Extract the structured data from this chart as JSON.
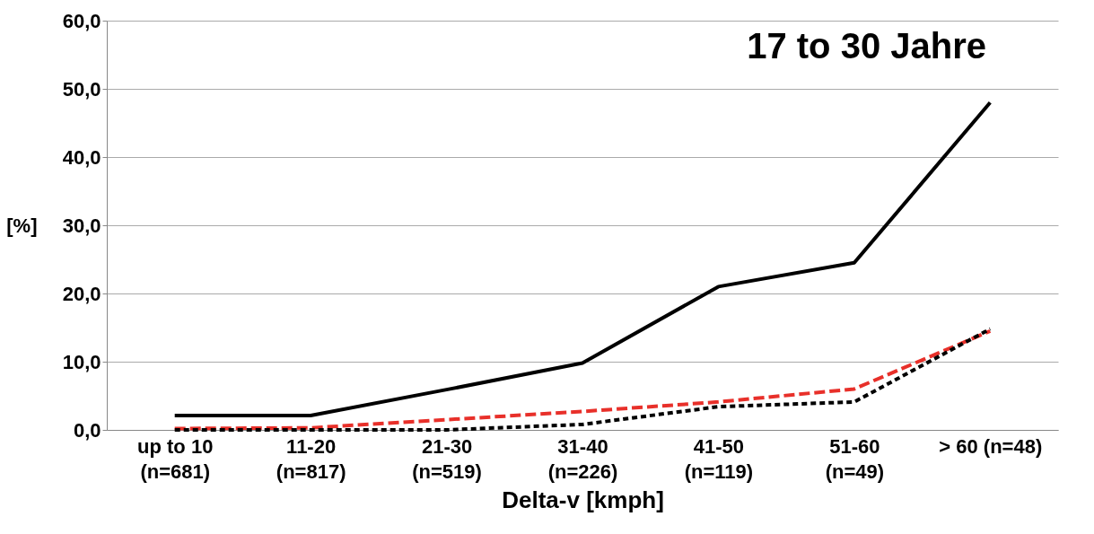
{
  "chart_data": {
    "type": "line",
    "xlabel": "Delta-v [kmph]",
    "ylabel": "[%]",
    "annotations": [
      "17 to 30 Jahre"
    ],
    "categories": [
      "up to 10\n(n=681)",
      "11-20\n(n=817)",
      "21-30\n(n=519)",
      "31-40\n(n=226)",
      "41-50\n(n=119)",
      "51-60\n(n=49)",
      "> 60 (n=48)"
    ],
    "series": [
      {
        "color": "#000000",
        "line_style": "solid",
        "values": [
          2.1,
          2.1,
          5.9,
          9.8,
          21.0,
          24.5,
          48.0
        ]
      },
      {
        "color": "#e8302a",
        "line_style": "dashed",
        "values": [
          0.2,
          0.3,
          1.5,
          2.7,
          4.1,
          6.0,
          14.5
        ]
      },
      {
        "color": "#000000",
        "line_style": "dotted",
        "values": [
          0.0,
          0.0,
          0.0,
          0.8,
          3.4,
          4.1,
          14.8
        ]
      }
    ],
    "ylim": [
      0,
      60
    ],
    "yticks": [
      {
        "value": 0,
        "label": "0,0"
      },
      {
        "value": 10,
        "label": "10,0"
      },
      {
        "value": 20,
        "label": "20,0"
      },
      {
        "value": 30,
        "label": "30,0"
      },
      {
        "value": 40,
        "label": "40,0"
      },
      {
        "value": 50,
        "label": "50,0"
      },
      {
        "value": 60,
        "label": "60,0"
      }
    ],
    "grid": "y",
    "marker": "none"
  }
}
